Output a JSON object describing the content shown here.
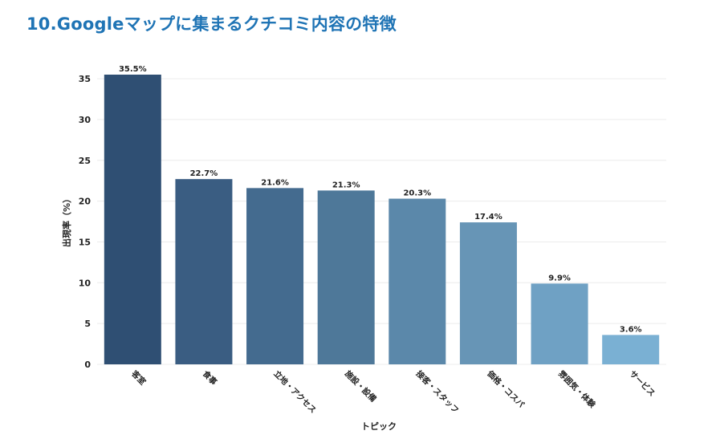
{
  "page": {
    "title": "10.Googleマップに集まるクチコミ内容の特徴"
  },
  "colors": {
    "title": "#1f74b5",
    "bars": [
      "#2f4f73",
      "#3a5d82",
      "#446b8f",
      "#4e7899",
      "#5b88aa",
      "#6795b6",
      "#6fa1c4",
      "#7ab0d3"
    ],
    "grid": "#ececec"
  },
  "chart_data": {
    "type": "bar",
    "title": "",
    "xlabel": "トピック",
    "ylabel": "出現率（%）",
    "categories": [
      "客室",
      "食事",
      "立地・アクセス",
      "施設・設備",
      "接客・スタッフ",
      "価格・コスパ",
      "雰囲気・体験",
      "サービス"
    ],
    "values": [
      35.5,
      22.7,
      21.6,
      21.3,
      20.3,
      17.4,
      9.9,
      3.6
    ],
    "data_labels": [
      "35.5%",
      "22.7%",
      "21.6%",
      "21.3%",
      "20.3%",
      "17.4%",
      "9.9%",
      "3.6%"
    ],
    "yticks": [
      0,
      5,
      10,
      15,
      20,
      25,
      30,
      35
    ],
    "ylim": [
      0,
      35.5
    ],
    "grid": true,
    "legend": "none"
  }
}
